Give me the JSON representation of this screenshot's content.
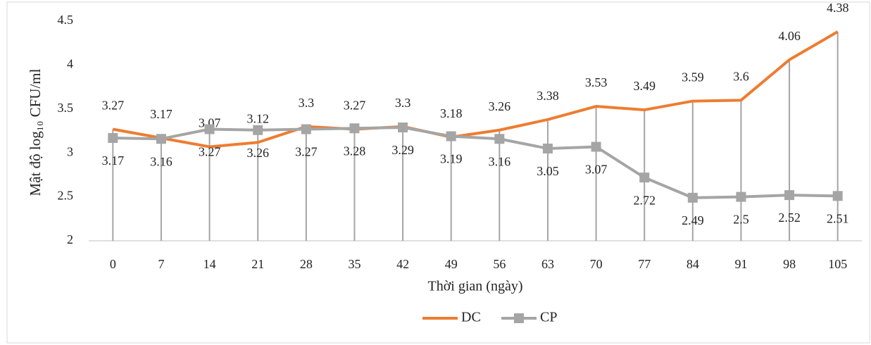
{
  "chart_data": {
    "type": "line",
    "ylabel": "Mật độ log₁₀ CFU/ml",
    "xlabel": "Thời gian (ngày)",
    "categories": [
      "0",
      "7",
      "14",
      "21",
      "28",
      "35",
      "42",
      "49",
      "56",
      "63",
      "70",
      "77",
      "84",
      "91",
      "98",
      "105"
    ],
    "series": [
      {
        "name": "DC",
        "color": "#ed7d31",
        "values": [
          3.27,
          3.17,
          3.07,
          3.12,
          3.3,
          3.27,
          3.3,
          3.18,
          3.26,
          3.38,
          3.53,
          3.49,
          3.59,
          3.6,
          4.06,
          4.38
        ]
      },
      {
        "name": "CP",
        "color": "#a5a5a5",
        "values": [
          3.17,
          3.16,
          3.27,
          3.26,
          3.27,
          3.28,
          3.29,
          3.19,
          3.16,
          3.05,
          3.07,
          2.72,
          2.49,
          2.5,
          2.52,
          2.51
        ]
      }
    ],
    "ylim": [
      2,
      4.5
    ],
    "yticks": [
      2,
      2.5,
      3,
      3.5,
      4,
      4.5
    ],
    "legend": "bottom",
    "drop_lines": true
  }
}
